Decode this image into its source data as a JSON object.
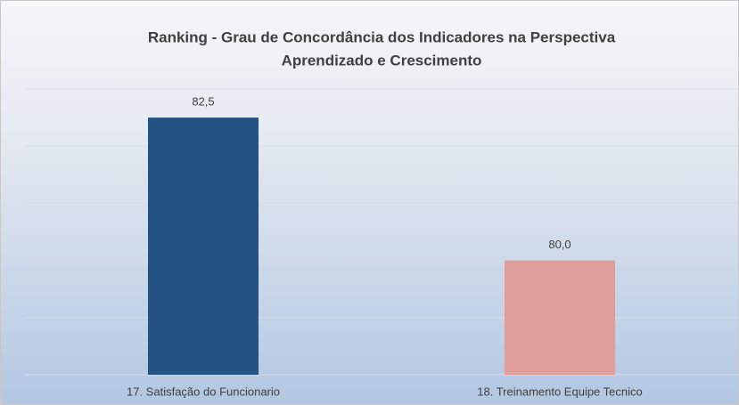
{
  "chart_data": {
    "type": "bar",
    "title": [
      "Ranking - Grau de Concordância dos Indicadores na Perspectiva",
      "Aprendizado e Crescimento"
    ],
    "categories": [
      "17. Satisfação do Funcionario",
      "18. Treinamento Equipe Tecnico"
    ],
    "values": [
      82.5,
      80.0
    ],
    "value_labels": [
      "82,5",
      "80,0"
    ],
    "colors": [
      "#245283",
      "#e09e9b"
    ],
    "ylim": [
      78,
      83
    ],
    "yticks": [
      78,
      79,
      80,
      81,
      82,
      83
    ],
    "grid": true
  }
}
